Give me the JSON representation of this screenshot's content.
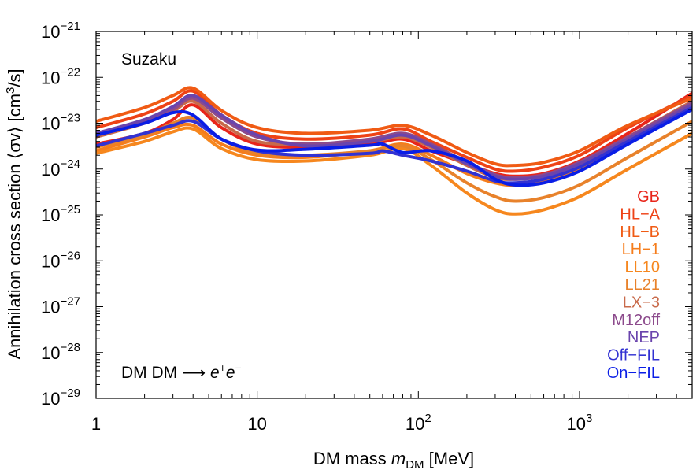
{
  "chart_data": {
    "type": "line",
    "xlabel": {
      "prefix": "DM mass ",
      "var": "m",
      "sub": "DM",
      "unit": " [MeV]"
    },
    "ylabel": {
      "text": "Annihilation cross section ⟨σv⟩ [cm",
      "sup": "3",
      "end": "/s]"
    },
    "x_scale": "log",
    "y_scale": "log",
    "xlim": [
      1,
      5000
    ],
    "ylim": [
      1e-29,
      1e-21
    ],
    "grid": false,
    "x_ticks": [
      {
        "value": 1,
        "base": "1",
        "sup": ""
      },
      {
        "value": 10,
        "base": "10",
        "sup": ""
      },
      {
        "value": 100,
        "base": "10",
        "sup": "2"
      },
      {
        "value": 1000,
        "base": "10",
        "sup": "3"
      }
    ],
    "y_ticks": [
      {
        "value": 1e-21,
        "base": "10",
        "sup": "−21"
      },
      {
        "value": 1e-22,
        "base": "10",
        "sup": "−22"
      },
      {
        "value": 1e-23,
        "base": "10",
        "sup": "−23"
      },
      {
        "value": 1e-24,
        "base": "10",
        "sup": "−24"
      },
      {
        "value": 1e-25,
        "base": "10",
        "sup": "−25"
      },
      {
        "value": 1e-26,
        "base": "10",
        "sup": "−26"
      },
      {
        "value": 1e-27,
        "base": "10",
        "sup": "−27"
      },
      {
        "value": 1e-28,
        "base": "10",
        "sup": "−28"
      },
      {
        "value": 1e-29,
        "base": "10",
        "sup": "−29"
      }
    ],
    "annotations": {
      "top_left": "Suzaku",
      "bottom_left": {
        "text": "DM DM ⟶ ",
        "var": "e",
        "sup1": "+",
        "var2": "e",
        "sup2": "−"
      }
    },
    "legend_position": "right",
    "series": [
      {
        "name": "GB",
        "color": "#e8251a",
        "x": [
          1,
          2,
          3,
          4,
          6,
          10,
          20,
          50,
          80,
          120,
          200,
          300,
          400,
          600,
          1000,
          2000,
          5000
        ],
        "y": [
          3.5e-24,
          6e-24,
          1.2e-23,
          2.5e-23,
          8e-24,
          3.5e-24,
          3e-24,
          3.5e-24,
          4.5e-24,
          2.5e-24,
          1.3e-24,
          8e-25,
          7e-25,
          8e-25,
          1.5e-24,
          6e-24,
          4.5e-23
        ]
      },
      {
        "name": "HL−A",
        "color": "#ee4216",
        "x": [
          1,
          2,
          3,
          4,
          6,
          10,
          20,
          50,
          80,
          120,
          200,
          300,
          400,
          600,
          1000,
          2000,
          5000
        ],
        "y": [
          8e-24,
          1.6e-23,
          3e-23,
          5e-23,
          1.5e-23,
          6e-24,
          4.5e-24,
          5.5e-24,
          7.5e-24,
          4e-24,
          1.8e-24,
          1e-24,
          9e-25,
          1.1e-24,
          2e-24,
          8e-24,
          4e-23
        ]
      },
      {
        "name": "HL−B",
        "color": "#f05b14",
        "x": [
          1,
          2,
          3,
          4,
          6,
          10,
          20,
          50,
          80,
          120,
          200,
          300,
          400,
          600,
          1000,
          2000,
          5000
        ],
        "y": [
          1.1e-23,
          2.2e-23,
          4e-23,
          5.8e-23,
          1.9e-23,
          8e-24,
          6e-24,
          7e-24,
          9e-24,
          5.5e-24,
          2.3e-24,
          1.3e-24,
          1.2e-24,
          1.4e-24,
          2.5e-24,
          9e-24,
          3.5e-23
        ]
      },
      {
        "name": "LH−1",
        "color": "#f57d1c",
        "x": [
          1,
          2,
          3,
          4,
          6,
          10,
          20,
          50,
          80,
          120,
          200,
          300,
          400,
          600,
          1000,
          2000,
          5000
        ],
        "y": [
          2.5e-24,
          5e-24,
          8e-24,
          9e-24,
          3.5e-24,
          2e-24,
          1.8e-24,
          2.5e-24,
          3.5e-24,
          2e-24,
          8e-25,
          5e-25,
          4.5e-25,
          5.5e-25,
          1e-24,
          4e-24,
          2.5e-23
        ]
      },
      {
        "name": "LL10",
        "color": "#f6871e",
        "x": [
          1,
          2,
          3,
          4,
          6,
          10,
          20,
          50,
          80,
          120,
          200,
          300,
          400,
          600,
          1000,
          2000,
          5000
        ],
        "y": [
          2.2e-24,
          4e-24,
          6.5e-24,
          7.5e-24,
          2.8e-24,
          1.6e-24,
          1.5e-24,
          2e-24,
          2.8e-24,
          1.2e-24,
          3e-25,
          1.3e-25,
          1.05e-25,
          1.3e-25,
          2.5e-25,
          1e-24,
          6e-24
        ]
      },
      {
        "name": "LL21",
        "color": "#e8822b",
        "x": [
          1,
          2,
          3,
          4,
          6,
          10,
          20,
          50,
          80,
          120,
          200,
          300,
          400,
          600,
          1000,
          2000,
          5000
        ],
        "y": [
          3e-24,
          5.5e-24,
          1e-23,
          1.3e-23,
          4.5e-24,
          2.2e-24,
          2e-24,
          2.5e-24,
          3.2e-24,
          1.6e-24,
          5e-25,
          2.5e-25,
          2e-25,
          2.4e-25,
          4.5e-25,
          1.8e-24,
          1.1e-23
        ]
      },
      {
        "name": "LX−3",
        "color": "#c86a4a",
        "x": [
          1,
          2,
          3,
          4,
          6,
          10,
          20,
          50,
          80,
          120,
          200,
          300,
          400,
          600,
          1000,
          2000,
          5000
        ],
        "y": [
          5e-24,
          1e-23,
          1.8e-23,
          3e-23,
          1e-23,
          4e-24,
          3.5e-24,
          4e-24,
          5e-24,
          3e-24,
          1.2e-24,
          6.5e-25,
          6e-25,
          7e-25,
          1.3e-24,
          5e-24,
          3e-23
        ]
      },
      {
        "name": "M12off",
        "color": "#8c4a8c",
        "x": [
          1,
          2,
          3,
          4,
          6,
          10,
          20,
          50,
          80,
          120,
          200,
          300,
          400,
          600,
          1000,
          2000,
          5000
        ],
        "y": [
          5.5e-24,
          1.1e-23,
          2e-23,
          3.5e-23,
          1.3e-23,
          5e-24,
          3.5e-24,
          4.5e-24,
          6e-24,
          3.5e-24,
          1.4e-24,
          7.5e-25,
          6.5e-25,
          7.5e-25,
          1.4e-24,
          5e-24,
          2.8e-23
        ]
      },
      {
        "name": "NEP",
        "color": "#6a44ad",
        "x": [
          1,
          2,
          3,
          4,
          6,
          10,
          20,
          50,
          80,
          120,
          200,
          300,
          400,
          600,
          1000,
          2000,
          5000
        ],
        "y": [
          6e-24,
          1.2e-23,
          2.3e-23,
          4e-23,
          1.5e-23,
          5.5e-24,
          3.2e-24,
          4e-24,
          5.5e-24,
          3.2e-24,
          1.3e-24,
          7e-25,
          6e-25,
          7e-25,
          1.3e-24,
          4.5e-24,
          2.5e-23
        ]
      },
      {
        "name": "Off−FIL",
        "color": "#3232d2",
        "x": [
          1,
          2,
          3,
          4,
          6,
          10,
          20,
          50,
          60,
          80,
          120,
          200,
          300,
          400,
          600,
          1000,
          2000,
          5000
        ],
        "y": [
          3.2e-24,
          6e-24,
          9e-24,
          1.1e-23,
          4.5e-24,
          2.5e-24,
          2e-24,
          2.2e-24,
          2.5e-24,
          2e-24,
          1.5e-24,
          9e-25,
          5.5e-25,
          5e-25,
          6e-25,
          1.1e-24,
          4e-24,
          2.2e-23
        ]
      },
      {
        "name": "On−FIL",
        "color": "#0a1ee6",
        "x": [
          1,
          2,
          3,
          4,
          6,
          10,
          20,
          50,
          60,
          80,
          120,
          200,
          300,
          400,
          600,
          1000,
          2000,
          5000
        ],
        "y": [
          5.5e-24,
          1e-23,
          1.7e-23,
          1.5e-23,
          4.5e-24,
          2.6e-24,
          2.7e-24,
          3.3e-24,
          3.5e-24,
          2.3e-24,
          2.5e-24,
          1.5e-24,
          6e-25,
          4.5e-25,
          5e-25,
          9e-25,
          3.5e-24,
          2e-23
        ]
      }
    ]
  }
}
